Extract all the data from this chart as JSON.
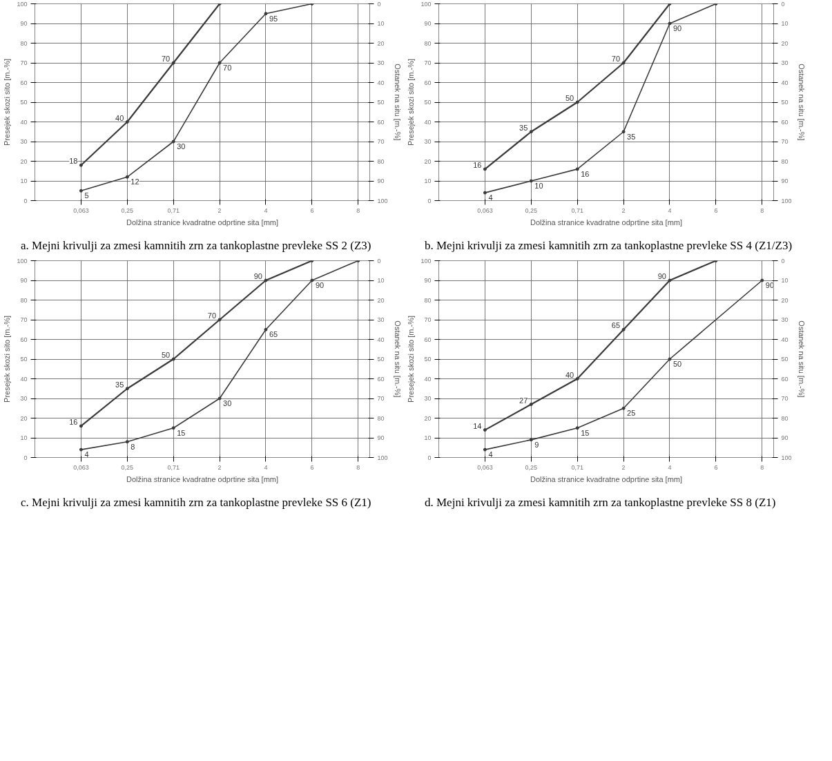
{
  "chart_data": [
    {
      "type": "line",
      "categories": [
        "0,063",
        "0,25",
        "0,71",
        "2",
        "4",
        "6",
        "8"
      ],
      "xlabel": "Dolžina stranice kvadratne odprtine sita [mm]",
      "ylabel": "Presejek skozi sito [m.-%]",
      "y2label": "Ostanek na situ [m.-%]",
      "ylim": [
        0,
        100
      ],
      "yticks": [
        0,
        10,
        20,
        30,
        40,
        50,
        60,
        70,
        80,
        90,
        100
      ],
      "y2lim": [
        100,
        0
      ],
      "y2ticks": [
        0,
        10,
        20,
        30,
        40,
        50,
        60,
        70,
        80,
        90,
        100
      ],
      "grid": true,
      "marker": "circle",
      "line_style": "solid",
      "series": [
        {
          "color": "#3a3a3a",
          "values": [
            18,
            40,
            70,
            100,
            null,
            null,
            null
          ],
          "value_labels": [
            "18",
            "40",
            "70",
            null,
            null,
            null,
            null
          ]
        },
        {
          "color": "#3a3a3a",
          "values": [
            5,
            12,
            30,
            70,
            95,
            100,
            null
          ],
          "value_labels": [
            "5",
            "12",
            "30",
            "70",
            "95",
            null,
            null
          ]
        }
      ],
      "annotations": [
        "a.  Mejni krivulji za zmesi kamnitih zrn za tankoplastne prevleke SS 2 (Z3)"
      ]
    },
    {
      "type": "line",
      "categories": [
        "0,063",
        "0,25",
        "0,71",
        "2",
        "4",
        "6",
        "8"
      ],
      "xlabel": "Dolžina stranice kvadratne odprtine sita [mm]",
      "ylabel": "Presejek skozi sito [m.-%]",
      "y2label": "Ostanek na situ [m.-%]",
      "ylim": [
        0,
        100
      ],
      "yticks": [
        0,
        10,
        20,
        30,
        40,
        50,
        60,
        70,
        80,
        90,
        100
      ],
      "y2lim": [
        100,
        0
      ],
      "y2ticks": [
        0,
        10,
        20,
        30,
        40,
        50,
        60,
        70,
        80,
        90,
        100
      ],
      "grid": true,
      "marker": "circle",
      "line_style": "solid",
      "series": [
        {
          "color": "#3a3a3a",
          "values": [
            16,
            35,
            50,
            70,
            100,
            null,
            null
          ],
          "value_labels": [
            "16",
            "35",
            "50",
            "70",
            null,
            null,
            null
          ]
        },
        {
          "color": "#3a3a3a",
          "values": [
            4,
            10,
            16,
            35,
            90,
            100,
            null
          ],
          "value_labels": [
            "4",
            "10",
            "16",
            "35",
            "90",
            null,
            null
          ]
        }
      ],
      "annotations": [
        "b.  Mejni krivulji za zmesi kamnitih zrn za tankoplastne prevleke SS 4 (Z1/Z3)"
      ]
    },
    {
      "type": "line",
      "categories": [
        "0,063",
        "0,25",
        "0,71",
        "2",
        "4",
        "6",
        "8"
      ],
      "xlabel": "Dolžina stranice kvadratne odprtine sita [mm]",
      "ylabel": "Presejek skozi sito [m.-%]",
      "y2label": "Ostanek na situ [m.-%]",
      "ylim": [
        0,
        100
      ],
      "yticks": [
        0,
        10,
        20,
        30,
        40,
        50,
        60,
        70,
        80,
        90,
        100
      ],
      "y2lim": [
        100,
        0
      ],
      "y2ticks": [
        0,
        10,
        20,
        30,
        40,
        50,
        60,
        70,
        80,
        90,
        100
      ],
      "grid": true,
      "marker": "circle",
      "line_style": "solid",
      "series": [
        {
          "color": "#3a3a3a",
          "values": [
            16,
            35,
            50,
            70,
            90,
            100,
            null
          ],
          "value_labels": [
            "16",
            "35",
            "50",
            "70",
            "90",
            null,
            null
          ]
        },
        {
          "color": "#3a3a3a",
          "values": [
            4,
            8,
            15,
            30,
            65,
            90,
            100
          ],
          "value_labels": [
            "4",
            "8",
            "15",
            "30",
            "65",
            "90",
            null
          ]
        }
      ],
      "annotations": [
        "c.  Mejni krivulji za zmesi kamnitih zrn za tankoplastne prevleke SS 6 (Z1)"
      ]
    },
    {
      "type": "line",
      "categories": [
        "0,063",
        "0,25",
        "0,71",
        "2",
        "4",
        "6",
        "8"
      ],
      "xlabel": "Dolžina stranice kvadratne odprtine sita [mm]",
      "ylabel": "Presejek skozi sito [m.-%]",
      "y2label": "Ostanek na situ [m.-%]",
      "ylim": [
        0,
        100
      ],
      "yticks": [
        0,
        10,
        20,
        30,
        40,
        50,
        60,
        70,
        80,
        90,
        100
      ],
      "y2lim": [
        100,
        0
      ],
      "y2ticks": [
        0,
        10,
        20,
        30,
        40,
        50,
        60,
        70,
        80,
        90,
        100
      ],
      "grid": true,
      "marker": "circle",
      "line_style": "solid",
      "series": [
        {
          "color": "#3a3a3a",
          "values": [
            14,
            27,
            40,
            65,
            90,
            100,
            null
          ],
          "value_labels": [
            "14",
            "27",
            "40",
            "65",
            "90",
            null,
            null
          ]
        },
        {
          "color": "#3a3a3a",
          "values": [
            4,
            9,
            15,
            25,
            50,
            null,
            90
          ],
          "value_labels": [
            "4",
            "9",
            "15",
            "25",
            "50",
            null,
            "90"
          ]
        }
      ],
      "annotations": [
        "d.  Mejni krivulji za zmesi kamnitih zrn za tankoplastne prevleke SS 8 (Z1)"
      ]
    }
  ]
}
